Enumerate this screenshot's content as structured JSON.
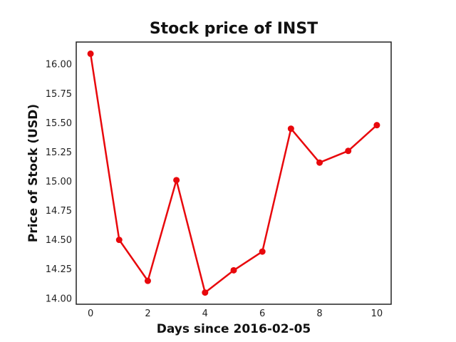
{
  "chart_data": {
    "type": "line",
    "title": "Stock price of INST",
    "xlabel": "Days since 2016-02-05",
    "ylabel": "Price of Stock (USD)",
    "xlim": [
      -0.5,
      10.5
    ],
    "ylim": [
      13.95,
      16.19
    ],
    "grid": false,
    "legend": "none",
    "x_ticks": [
      "0",
      "2",
      "4",
      "6",
      "8",
      "10"
    ],
    "y_ticks": [
      "14.00",
      "14.25",
      "14.50",
      "14.75",
      "15.00",
      "15.25",
      "15.50",
      "15.75",
      "16.00"
    ],
    "series": [
      {
        "color": "#e8080c",
        "marker": "circle",
        "x": [
          0,
          1,
          2,
          3,
          4,
          5,
          6,
          7,
          8,
          9,
          10
        ],
        "y": [
          16.09,
          14.5,
          14.15,
          15.01,
          14.05,
          14.24,
          14.4,
          15.45,
          15.16,
          15.26,
          15.48
        ]
      }
    ]
  }
}
